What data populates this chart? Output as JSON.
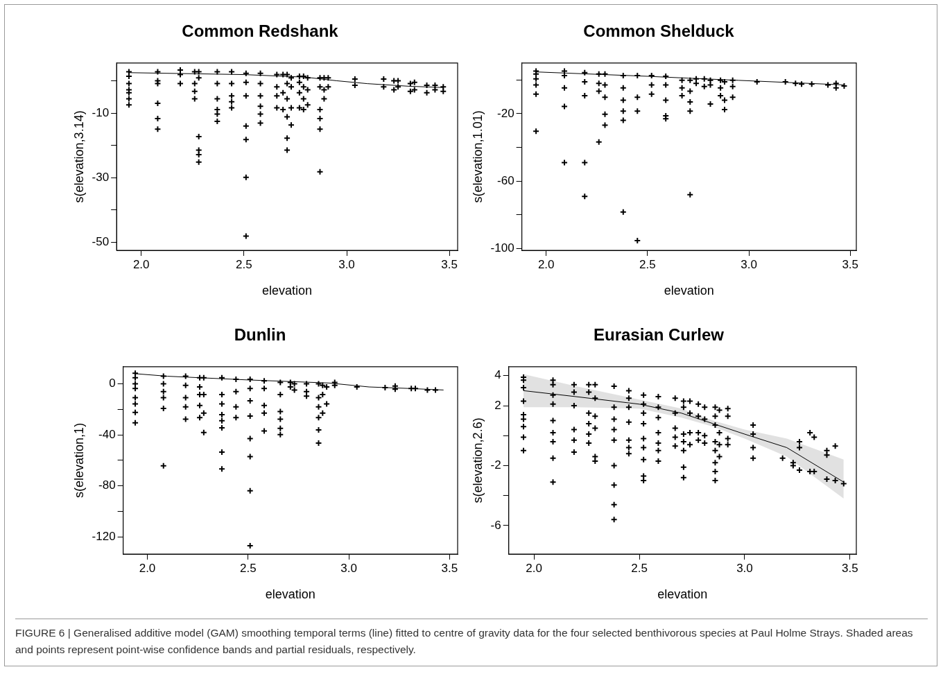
{
  "chart_data": [
    {
      "type": "scatter",
      "title": "Common Redshank",
      "xlabel": "elevation",
      "ylabel": "s(elevation,3.14)",
      "xlim": [
        1.88,
        3.54
      ],
      "ylim": [
        -52.5,
        5.5
      ],
      "xticks": [
        {
          "value": 2,
          "label": "2.0"
        },
        {
          "value": 2.5,
          "label": "2.5"
        },
        {
          "value": 3,
          "label": "3.0"
        },
        {
          "value": 3.5,
          "label": "3.5"
        }
      ],
      "yticks": [
        -50,
        {
          "value": -40,
          "label": null
        },
        -30,
        {
          "value": -20,
          "label": null
        },
        -10,
        {
          "value": 0,
          "label": null
        }
      ],
      "grid": false,
      "legend": false,
      "series": [
        {
          "marker": "cross",
          "color": "#000000",
          "x": [
            1.94,
            1.94,
            1.94,
            1.94,
            1.94,
            1.94,
            1.94,
            2.08,
            2.08,
            2.08,
            2.08,
            2.08,
            2.08,
            2.19,
            2.19,
            2.19,
            2.26,
            2.26,
            2.26,
            2.26,
            2.28,
            2.28,
            2.28,
            2.28,
            2.28,
            2.28,
            2.37,
            2.37,
            2.37,
            2.37,
            2.37,
            2.37,
            2.44,
            2.44,
            2.44,
            2.44,
            2.44,
            2.51,
            2.51,
            2.51,
            2.51,
            2.51,
            2.51,
            2.51,
            2.58,
            2.58,
            2.58,
            2.58,
            2.58,
            2.58,
            2.66,
            2.66,
            2.66,
            2.66,
            2.69,
            2.69,
            2.69,
            2.71,
            2.71,
            2.71,
            2.71,
            2.71,
            2.71,
            2.73,
            2.73,
            2.73,
            2.73,
            2.77,
            2.77,
            2.77,
            2.77,
            2.79,
            2.79,
            2.79,
            2.79,
            2.81,
            2.81,
            2.81,
            2.87,
            2.87,
            2.87,
            2.87,
            2.87,
            2.87,
            2.89,
            2.89,
            2.89,
            2.91,
            2.91,
            3.04,
            3.04,
            3.18,
            3.18,
            3.23,
            3.23,
            3.25,
            3.25,
            3.31,
            3.31,
            3.33,
            3.33,
            3.39,
            3.39,
            3.43,
            3.43,
            3.47,
            3.47
          ],
          "values": [
            2.8,
            1.4,
            -0.9,
            -2.8,
            -3.7,
            -5.6,
            -7.5,
            2.8,
            0,
            -0.9,
            -7,
            -11.7,
            -15,
            3.3,
            1.9,
            -0.9,
            2.8,
            -0.9,
            -3.3,
            -5.6,
            2.8,
            0.9,
            -17.3,
            -21.5,
            -22.9,
            -25.2,
            2.8,
            -0.9,
            -5.6,
            -8.9,
            -10.3,
            -12.6,
            2.8,
            -0.9,
            -4.7,
            -6.5,
            -8.4,
            2.3,
            -0.5,
            -4.7,
            -14,
            -18.2,
            -29.9,
            -48.1,
            2.3,
            -0.9,
            -4.7,
            -7.9,
            -10.3,
            -13.1,
            1.9,
            -1.9,
            -4.7,
            -8.4,
            1.9,
            -3.7,
            -8.9,
            1.9,
            -0.9,
            -5.6,
            -11.2,
            -17.8,
            -21.5,
            0.9,
            -1.9,
            -8.4,
            -13.7,
            1.4,
            -0.5,
            -3.7,
            -8.4,
            1.4,
            -1.9,
            -5.6,
            -8.9,
            0.9,
            -2.8,
            -7.5,
            0.9,
            -1.9,
            -8.9,
            -11.7,
            -15,
            -28.2,
            0.9,
            -2.8,
            -5.6,
            0.9,
            -1.9,
            0.5,
            -1.4,
            0.5,
            -1.9,
            0,
            -2.8,
            0,
            -1.9,
            -0.9,
            -3.3,
            -0.5,
            -2.8,
            -1.4,
            -3.7,
            -1.4,
            -2.8,
            -1.9,
            -3.3
          ]
        },
        {
          "type": "line",
          "color": "#000000",
          "x": [
            1.94,
            2.5,
            2.8,
            2.95,
            3.1,
            3.3,
            3.47
          ],
          "values": [
            2.5,
            1.9,
            1.1,
            0,
            -0.9,
            -1.7,
            -2.1
          ]
        }
      ]
    },
    {
      "type": "scatter",
      "title": "Common Shelduck",
      "xlabel": "elevation",
      "ylabel": "s(elevation,1.01)",
      "xlim": [
        1.88,
        3.53
      ],
      "ylim": [
        -101,
        10
      ],
      "xticks": [
        {
          "value": 2,
          "label": "2.0"
        },
        {
          "value": 2.5,
          "label": "2.5"
        },
        {
          "value": 3,
          "label": "3.0"
        },
        {
          "value": 3.5,
          "label": "3.5"
        }
      ],
      "yticks": [
        -100,
        {
          "value": -80,
          "label": null
        },
        -60,
        {
          "value": -40,
          "label": null
        },
        -20,
        {
          "value": 0,
          "label": null
        }
      ],
      "grid": false,
      "legend": false,
      "series": [
        {
          "marker": "cross",
          "color": "#000000",
          "x": [
            1.95,
            1.95,
            1.95,
            1.95,
            1.95,
            1.95,
            2.09,
            2.09,
            2.09,
            2.09,
            2.09,
            2.19,
            2.19,
            2.19,
            2.19,
            2.19,
            2.26,
            2.26,
            2.26,
            2.26,
            2.29,
            2.29,
            2.29,
            2.29,
            2.29,
            2.38,
            2.38,
            2.38,
            2.38,
            2.38,
            2.38,
            2.45,
            2.45,
            2.45,
            2.45,
            2.52,
            2.52,
            2.52,
            2.59,
            2.59,
            2.59,
            2.59,
            2.59,
            2.67,
            2.67,
            2.67,
            2.71,
            2.71,
            2.71,
            2.71,
            2.71,
            2.74,
            2.74,
            2.78,
            2.78,
            2.81,
            2.81,
            2.81,
            2.86,
            2.86,
            2.86,
            2.88,
            2.88,
            2.88,
            2.92,
            2.92,
            2.92,
            3.04,
            3.18,
            3.23,
            3.26,
            3.31,
            3.39,
            3.43,
            3.43,
            3.47
          ],
          "values": [
            5.2,
            3.4,
            0.6,
            -3,
            -8.5,
            -30.4,
            5.2,
            2.5,
            -4.8,
            -15.8,
            -49,
            4.3,
            -1.2,
            -9.4,
            -49,
            -69.1,
            3.4,
            -2.1,
            -6.7,
            -36.8,
            3.4,
            -3,
            -10.3,
            -20.4,
            -26.8,
            2.5,
            -4.8,
            -12.1,
            -18.5,
            -24,
            -78.3,
            2.5,
            -10.3,
            -18.5,
            -95.2,
            2.5,
            -3,
            -8.5,
            2.1,
            -3,
            -12.1,
            -21.3,
            -23.1,
            -0.3,
            -4.8,
            -9.4,
            -0.3,
            -6.7,
            -13.1,
            -18.5,
            -68,
            0.6,
            -2.1,
            0.6,
            -3.9,
            -0.3,
            -3,
            -14.3,
            -0.3,
            -4.8,
            -9.4,
            -1.2,
            -12.1,
            -17.6,
            -0.3,
            -3.9,
            -10.3,
            -1.2,
            -1.2,
            -2.1,
            -2.5,
            -2.5,
            -3,
            -2.1,
            -4.8,
            -3.6
          ]
        },
        {
          "type": "line",
          "color": "#000000",
          "x": [
            1.95,
            2.5,
            2.7,
            2.95,
            3.2,
            3.47
          ],
          "values": [
            4.7,
            2.1,
            1,
            -0.3,
            -1.6,
            -3
          ]
        }
      ]
    },
    {
      "type": "scatter",
      "title": "Dunlin",
      "xlabel": "elevation",
      "ylabel": "s(elevation,1)",
      "xlim": [
        1.88,
        3.54
      ],
      "ylim": [
        -133.5,
        13.5
      ],
      "xticks": [
        {
          "value": 2,
          "label": "2.0"
        },
        {
          "value": 2.5,
          "label": "2.5"
        },
        {
          "value": 3,
          "label": "3.0"
        },
        {
          "value": 3.5,
          "label": "3.5"
        }
      ],
      "yticks": [
        -120,
        {
          "value": -100,
          "label": null
        },
        -80,
        {
          "value": -60,
          "label": null
        },
        -40,
        {
          "value": -20,
          "label": null
        },
        0
      ],
      "grid": false,
      "legend": false,
      "series": [
        {
          "marker": "cross",
          "color": "#000000",
          "x": [
            1.94,
            1.94,
            1.94,
            1.94,
            1.94,
            1.94,
            1.94,
            1.94,
            2.08,
            2.08,
            2.08,
            2.08,
            2.08,
            2.08,
            2.19,
            2.19,
            2.19,
            2.19,
            2.19,
            2.26,
            2.26,
            2.26,
            2.26,
            2.26,
            2.28,
            2.28,
            2.28,
            2.28,
            2.37,
            2.37,
            2.37,
            2.37,
            2.37,
            2.37,
            2.37,
            2.37,
            2.44,
            2.44,
            2.44,
            2.44,
            2.51,
            2.51,
            2.51,
            2.51,
            2.51,
            2.51,
            2.51,
            2.51,
            2.58,
            2.58,
            2.58,
            2.58,
            2.58,
            2.66,
            2.66,
            2.66,
            2.66,
            2.66,
            2.66,
            2.71,
            2.71,
            2.73,
            2.73,
            2.79,
            2.79,
            2.79,
            2.85,
            2.85,
            2.85,
            2.85,
            2.85,
            2.85,
            2.87,
            2.87,
            2.87,
            2.89,
            2.89,
            2.93,
            2.93,
            3.04,
            3.18,
            3.23,
            3.23,
            3.31,
            3.33,
            3.39,
            3.43
          ],
          "values": [
            8.4,
            4.8,
            0,
            -3.6,
            -10.8,
            -15.7,
            -22.4,
            -30.6,
            6,
            0,
            -6,
            -10.8,
            -19.3,
            -64.3,
            6,
            -1.2,
            -10.8,
            -18,
            -27.7,
            4.8,
            -2.4,
            -8.4,
            -16.9,
            -26.5,
            4.8,
            -8.4,
            -22.9,
            -38.1,
            4.8,
            -8.4,
            -15.7,
            -24.1,
            -28.9,
            -34.5,
            -53.5,
            -66.7,
            3.6,
            -6,
            -18,
            -26.5,
            3.6,
            -3.6,
            -13.3,
            -25.3,
            -42.9,
            -57.1,
            -83.9,
            -127,
            2.4,
            -3.6,
            -16.9,
            -22.9,
            -36.9,
            1.2,
            -8.4,
            -21.7,
            -27.7,
            -34.9,
            -39.8,
            1.2,
            -2.4,
            0,
            -4.8,
            0,
            -6,
            -9.6,
            0,
            -10.8,
            -18,
            -26.5,
            -36.1,
            -46.5,
            -1.2,
            -8.4,
            -22.9,
            -2.4,
            -15.7,
            1.2,
            -1.2,
            -2.4,
            -2.9,
            -1.7,
            -4.1,
            -3.6,
            -3.6,
            -4.8,
            -4.8
          ]
        },
        {
          "type": "line",
          "color": "#000000",
          "x": [
            1.94,
            2.1,
            2.5,
            2.9,
            3.1,
            3.3,
            3.47
          ],
          "values": [
            8,
            6,
            3.1,
            0.7,
            -2.4,
            -3.6,
            -4.8
          ]
        }
      ]
    },
    {
      "type": "scatter",
      "title": "Eurasian Curlew",
      "xlabel": "elevation",
      "ylabel": "s(elevation,2.6)",
      "xlim": [
        1.88,
        3.53
      ],
      "ylim": [
        -7.9,
        4.6
      ],
      "xticks": [
        {
          "value": 2,
          "label": "2.0"
        },
        {
          "value": 2.5,
          "label": "2.5"
        },
        {
          "value": 3,
          "label": "3.0"
        },
        {
          "value": 3.5,
          "label": "3.5"
        }
      ],
      "yticks": [
        -6,
        {
          "value": -4,
          "label": null
        },
        -2,
        {
          "value": 0,
          "label": null
        },
        2,
        4
      ],
      "grid": false,
      "legend": false,
      "annotations": [
        "FIGURE 6 | Generalised additive model (GAM) smoothing temporal terms (line) fitted to centre of gravity data for the four selected benthivorous species at Paul Holme Strays. Shaded areas and points represent point-wise confidence bands and partial residuals, respectively."
      ],
      "series": [
        {
          "marker": "cross",
          "color": "#000000",
          "x": [
            1.95,
            1.95,
            1.95,
            1.95,
            1.95,
            1.95,
            1.95,
            1.95,
            1.95,
            2.09,
            2.09,
            2.09,
            2.09,
            2.09,
            2.09,
            2.09,
            2.09,
            2.09,
            2.19,
            2.19,
            2.19,
            2.19,
            2.19,
            2.19,
            2.26,
            2.26,
            2.26,
            2.26,
            2.26,
            2.26,
            2.29,
            2.29,
            2.29,
            2.29,
            2.29,
            2.29,
            2.38,
            2.38,
            2.38,
            2.38,
            2.38,
            2.38,
            2.38,
            2.38,
            2.38,
            2.45,
            2.45,
            2.45,
            2.45,
            2.45,
            2.45,
            2.45,
            2.52,
            2.52,
            2.52,
            2.52,
            2.52,
            2.52,
            2.52,
            2.52,
            2.52,
            2.59,
            2.59,
            2.59,
            2.59,
            2.59,
            2.59,
            2.59,
            2.67,
            2.67,
            2.67,
            2.67,
            2.67,
            2.71,
            2.71,
            2.71,
            2.71,
            2.71,
            2.71,
            2.71,
            2.74,
            2.74,
            2.74,
            2.74,
            2.78,
            2.78,
            2.78,
            2.78,
            2.81,
            2.81,
            2.81,
            2.81,
            2.86,
            2.86,
            2.86,
            2.86,
            2.86,
            2.86,
            2.86,
            2.86,
            2.88,
            2.88,
            2.88,
            2.88,
            2.92,
            2.92,
            2.92,
            2.92,
            3.04,
            3.04,
            3.04,
            3.04,
            3.18,
            3.23,
            3.23,
            3.26,
            3.26,
            3.26,
            3.31,
            3.31,
            3.33,
            3.33,
            3.39,
            3.39,
            3.39,
            3.43,
            3.43,
            3.47
          ],
          "values": [
            3.9,
            3.7,
            3.2,
            2.3,
            1.4,
            1.1,
            0.6,
            -0.1,
            -1,
            3.7,
            3.4,
            2.7,
            2.1,
            1,
            0.2,
            -0.4,
            -1.5,
            -3.1,
            3.4,
            2.9,
            2,
            0.4,
            -0.3,
            -1.1,
            3.4,
            2.9,
            1.5,
            0.8,
            0.1,
            -0.5,
            3.4,
            2.5,
            1.3,
            0.5,
            -1.4,
            -1.7,
            3.3,
            1.9,
            1.1,
            0.4,
            -0.3,
            -2,
            -3.3,
            -4.6,
            -5.6,
            3,
            2.5,
            1.9,
            0.9,
            -0.3,
            -0.8,
            -1.2,
            2.7,
            2.1,
            1.5,
            0.8,
            -0.2,
            -0.8,
            -1.6,
            -2.7,
            -3,
            2.6,
            1.9,
            1.2,
            0.2,
            -0.5,
            -1,
            -1.7,
            2.5,
            1.5,
            0.5,
            -0.1,
            -0.7,
            2.3,
            1.9,
            0.1,
            -0.4,
            -1,
            -2.1,
            -2.8,
            2.3,
            1.5,
            0.2,
            -0.6,
            2.1,
            1.3,
            0.2,
            -0.3,
            1.9,
            1.1,
            0,
            -0.5,
            1.9,
            1.3,
            0.7,
            -0.4,
            -1,
            -1.8,
            -2.4,
            -3,
            1.7,
            0.2,
            -0.6,
            -1.4,
            1.8,
            1.3,
            -0.2,
            -0.6,
            0.7,
            0.1,
            -0.8,
            -1.5,
            -1.5,
            -1.8,
            -2,
            -0.4,
            -0.8,
            -2.3,
            0.2,
            -2.4,
            -0.1,
            -2.4,
            -1,
            -1.3,
            -2.9,
            -0.7,
            -3,
            -3.2
          ]
        },
        {
          "type": "line",
          "color": "#000000",
          "x": [
            1.95,
            2.2,
            2.5,
            2.7,
            2.85,
            3,
            3.2,
            3.47
          ],
          "values": [
            3,
            2.6,
            2.1,
            1.5,
            0.8,
            0.1,
            -0.8,
            -3.1
          ],
          "lower": [
            1.9,
            1.9,
            1.8,
            1.2,
            0.6,
            -0.2,
            -1.4,
            -4.2
          ],
          "upper": [
            4.1,
            3.3,
            2.4,
            1.8,
            1,
            0.4,
            -0.2,
            -1.6
          ]
        }
      ]
    }
  ]
}
